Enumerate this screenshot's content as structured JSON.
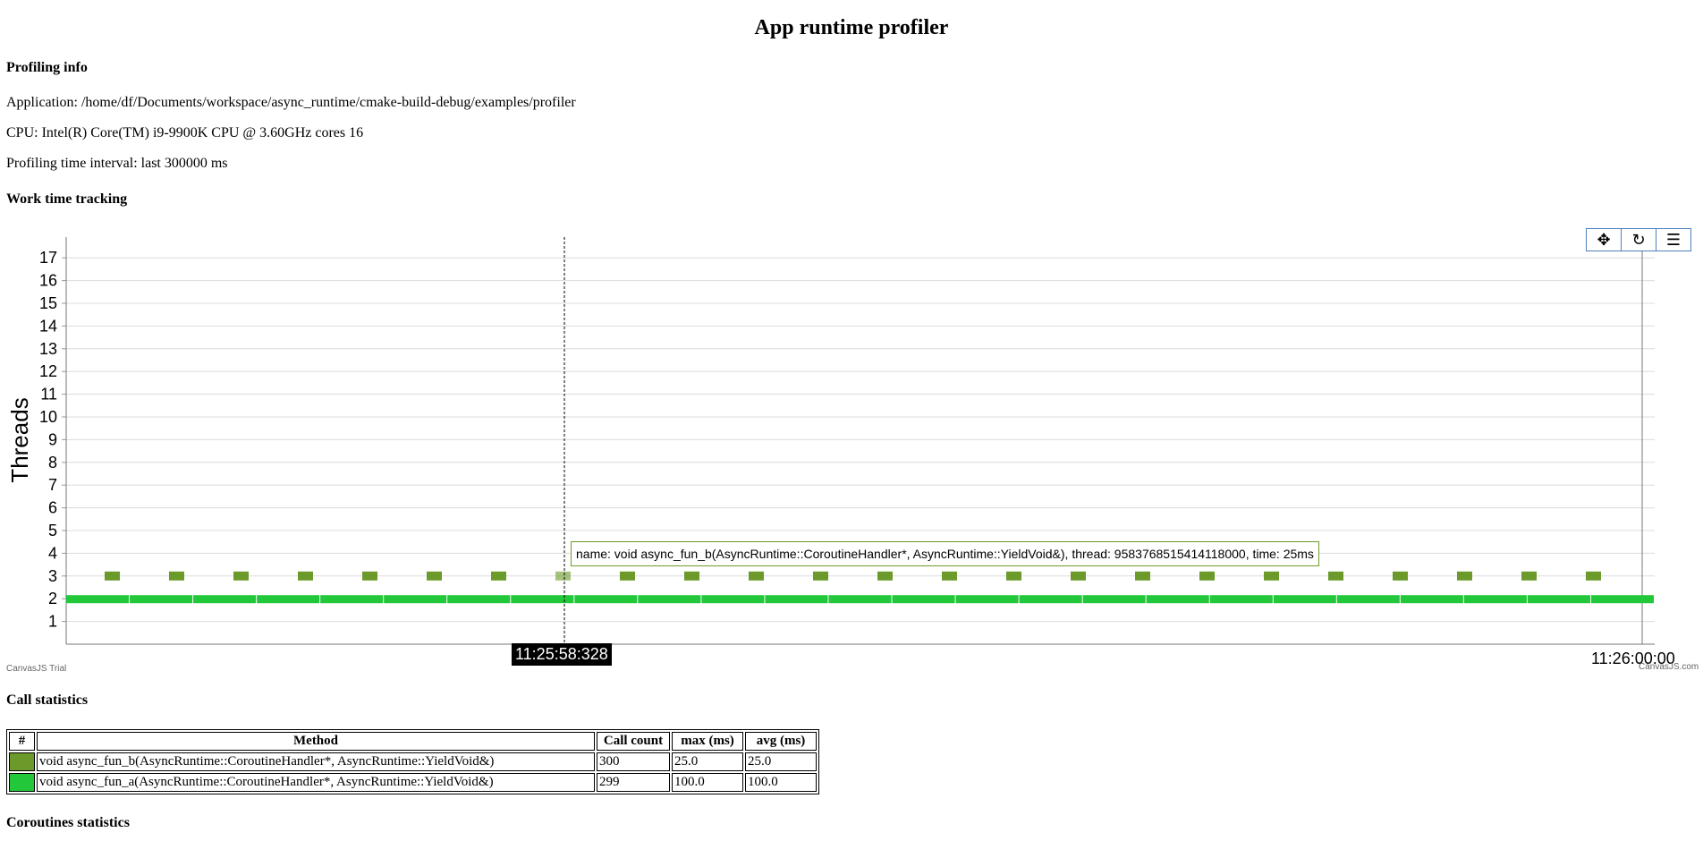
{
  "page": {
    "title": "App runtime profiler",
    "profiling_info_heading": "Profiling info",
    "application": "Application: /home/df/Documents/workspace/async_runtime/cmake-build-debug/examples/profiler",
    "cpu": "CPU: Intel(R) Core(TM) i9-9900K CPU @ 3.60GHz cores 16",
    "interval": "Profiling time interval: last 300000 ms",
    "work_time_heading": "Work time tracking",
    "call_stats_heading": "Call statistics",
    "coroutines_heading": "Coroutines statistics"
  },
  "chart": {
    "toolbar": {
      "pan_icon": "pan-icon",
      "reset_icon": "reset-icon",
      "menu_icon": "menu-icon"
    },
    "cursor_label": "11:25:58:328",
    "end_label": "11:26:00:00",
    "tooltip": "name: void async_fun_b(AsyncRuntime::CoroutineHandler*, AsyncRuntime::YieldVoid&), thread: 9583768515414118000, time: 25ms",
    "credit_left": "CanvasJS Trial",
    "credit_right": "CanvasJS.com"
  },
  "chart_data": {
    "type": "bar",
    "ylabel": "Threads",
    "ylim": [
      0,
      18
    ],
    "yticks": [
      1,
      2,
      3,
      4,
      5,
      6,
      7,
      8,
      9,
      10,
      11,
      12,
      13,
      14,
      15,
      16,
      17
    ],
    "grid": true,
    "series": [
      {
        "name": "void async_fun_b(AsyncRuntime::CoroutineHandler*, AsyncRuntime::YieldVoid&)",
        "thread": 3,
        "color": "#6b9a2a",
        "segments": 24
      },
      {
        "name": "void async_fun_a(AsyncRuntime::CoroutineHandler*, AsyncRuntime::YieldVoid&)",
        "thread": 2,
        "color": "#22c83a",
        "segments": 25
      }
    ]
  },
  "table": {
    "headers": [
      "#",
      "Method",
      "Call count",
      "max (ms)",
      "avg (ms)"
    ],
    "rows": [
      {
        "color": "#6b9a2a",
        "method": "void async_fun_b(AsyncRuntime::CoroutineHandler*, AsyncRuntime::YieldVoid&)",
        "count": "300",
        "max": "25.0",
        "avg": "25.0"
      },
      {
        "color": "#22c83a",
        "method": "void async_fun_a(AsyncRuntime::CoroutineHandler*, AsyncRuntime::YieldVoid&)",
        "count": "299",
        "max": "100.0",
        "avg": "100.0"
      }
    ]
  }
}
